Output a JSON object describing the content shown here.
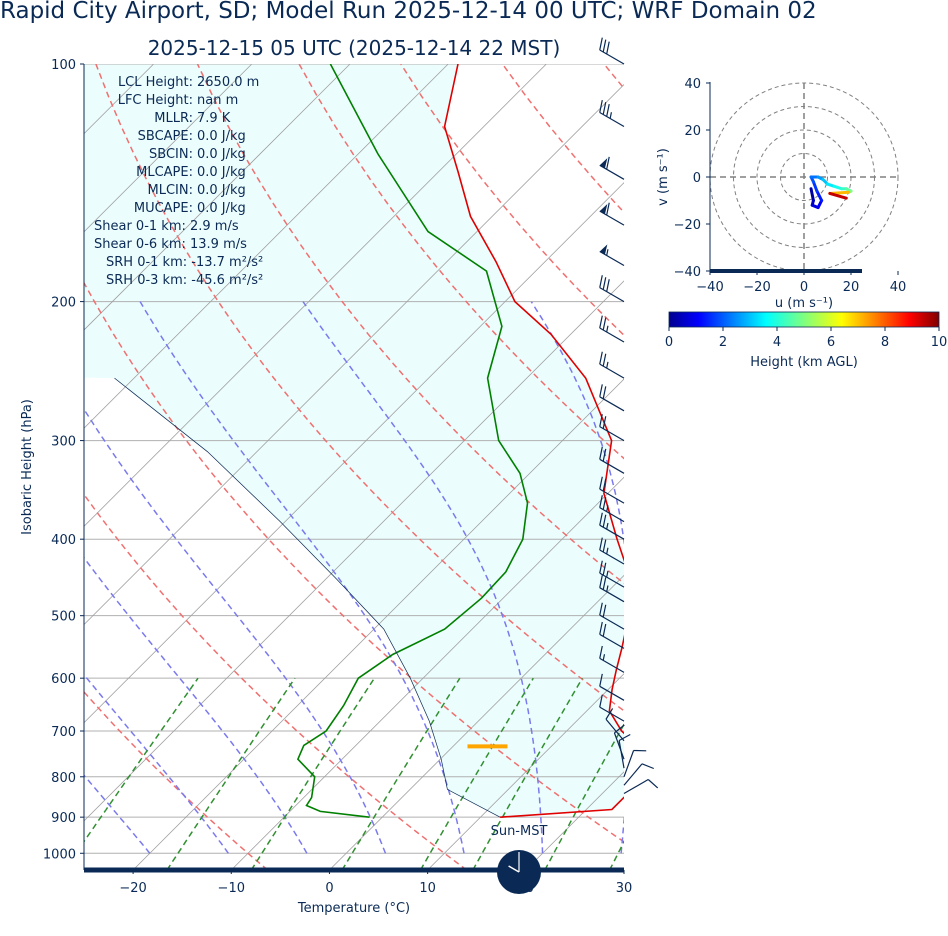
{
  "header": {
    "title": "Rapid City Airport, SD; Model Run 2025-12-14 00 UTC; WRF Domain 02",
    "subtitle": "2025-12-15 05 UTC  (2025-12-14 22 MST)"
  },
  "chart_data": [
    {
      "type": "skew-t",
      "xlabel": "Temperature (°C)",
      "ylabel": "Isobaric Height (hPa)",
      "xlim": [
        -25,
        30
      ],
      "ylim": [
        1050,
        100
      ],
      "x_ticks": [
        "−20",
        "−10",
        "0",
        "10",
        "20",
        "30"
      ],
      "y_ticks": [
        "100",
        "200",
        "300",
        "400",
        "500",
        "600",
        "700",
        "800",
        "900",
        "1000"
      ],
      "y_tick_values": [
        100,
        200,
        300,
        400,
        500,
        600,
        700,
        800,
        900,
        1000
      ],
      "series": [
        {
          "color": "#e00000",
          "kind": "temperature",
          "points": [
            [
              12.0,
              900
            ],
            [
              22.6,
              880
            ],
            [
              22.6,
              850
            ],
            [
              22.8,
              800
            ],
            [
              21.3,
              770
            ],
            [
              18.7,
              730
            ],
            [
              15.6,
              700
            ],
            [
              12.3,
              660
            ],
            [
              10.4,
              620
            ],
            [
              8.8,
              585
            ],
            [
              7.2,
              550
            ],
            [
              4.6,
              500
            ],
            [
              1.1,
              450
            ],
            [
              -4.4,
              400
            ],
            [
              -10.4,
              350
            ],
            [
              -15.0,
              300
            ],
            [
              -24.0,
              250
            ],
            [
              -32.0,
              220
            ],
            [
              -39.0,
              200
            ],
            [
              -45.0,
              178
            ],
            [
              -52.2,
              156
            ],
            [
              -58.0,
              137
            ],
            [
              -64.0,
              120
            ],
            [
              -69.0,
              100
            ]
          ]
        },
        {
          "color": "#008000",
          "kind": "dewpoint",
          "points": [
            [
              -1.3,
              900
            ],
            [
              -6.9,
              885
            ],
            [
              -8.9,
              870
            ],
            [
              -9.2,
              850
            ],
            [
              -11.0,
              800
            ],
            [
              -14.5,
              760
            ],
            [
              -15.3,
              730
            ],
            [
              -14.5,
              700
            ],
            [
              -15.3,
              650
            ],
            [
              -16.6,
              600
            ],
            [
              -15.5,
              560
            ],
            [
              -12.8,
              520
            ],
            [
              -12.2,
              475
            ],
            [
              -12.4,
              440
            ],
            [
              -14.0,
              400
            ],
            [
              -17.2,
              360
            ],
            [
              -21.0,
              330
            ],
            [
              -26.5,
              300
            ],
            [
              -34.0,
              250
            ],
            [
              -37.8,
              215
            ],
            [
              -45.0,
              183
            ],
            [
              -55.0,
              163
            ],
            [
              -68.0,
              130
            ],
            [
              -82.0,
              100
            ]
          ]
        },
        {
          "color": "#0a2a55",
          "kind": "parcel",
          "points": [
            [
              12.0,
              900
            ],
            [
              3.8,
              830
            ],
            [
              0.1,
              760
            ],
            [
              -5.0,
              680
            ],
            [
              -11.3,
              600
            ],
            [
              -19.0,
              520
            ],
            [
              -28.8,
              450
            ],
            [
              -40.5,
              380
            ],
            [
              -55.0,
              310
            ],
            [
              -72.0,
              250
            ]
          ]
        }
      ],
      "lcl_marker": {
        "color": "#ffa500",
        "pressure": 732,
        "temperature": 3.5
      },
      "indices": [
        "LCL Height: 2650.0 m",
        "LFC Height: nan m",
        "MLLR: 7.9 K",
        "SBCAPE: 0.0 J/kg",
        "SBCIN: 0.0 J/kg",
        "MLCAPE: 0.0 J/kg",
        "MLCIN: 0.0 J/kg",
        "MUCAPE: 0.0 J/kg",
        "Shear 0-1 km: 2.9 m/s",
        "Shear 0-6 km: 13.9 m/s",
        "SRH 0-1 km: -13.7 m²/s²",
        "SRH 0-3 km: -45.6 m²/s²"
      ],
      "clock_label": "Sun-MST",
      "clock_hour": 22,
      "wind_barbs": [
        {
          "p": 100,
          "dir": 300,
          "kt": 30
        },
        {
          "p": 120,
          "dir": 300,
          "kt": 35
        },
        {
          "p": 140,
          "dir": 300,
          "kt": 60
        },
        {
          "p": 160,
          "dir": 300,
          "kt": 60
        },
        {
          "p": 180,
          "dir": 300,
          "kt": 55
        },
        {
          "p": 200,
          "dir": 300,
          "kt": 30
        },
        {
          "p": 225,
          "dir": 300,
          "kt": 25
        },
        {
          "p": 250,
          "dir": 300,
          "kt": 25
        },
        {
          "p": 275,
          "dir": 300,
          "kt": 20
        },
        {
          "p": 300,
          "dir": 300,
          "kt": 20
        },
        {
          "p": 330,
          "dir": 300,
          "kt": 20
        },
        {
          "p": 360,
          "dir": 300,
          "kt": 20
        },
        {
          "p": 380,
          "dir": 300,
          "kt": 25
        },
        {
          "p": 400,
          "dir": 300,
          "kt": 25
        },
        {
          "p": 430,
          "dir": 300,
          "kt": 25
        },
        {
          "p": 460,
          "dir": 300,
          "kt": 25
        },
        {
          "p": 480,
          "dir": 300,
          "kt": 25
        },
        {
          "p": 520,
          "dir": 300,
          "kt": 20
        },
        {
          "p": 550,
          "dir": 300,
          "kt": 20
        },
        {
          "p": 590,
          "dir": 300,
          "kt": 15
        },
        {
          "p": 640,
          "dir": 300,
          "kt": 10
        },
        {
          "p": 680,
          "dir": 300,
          "kt": 10
        },
        {
          "p": 720,
          "dir": 320,
          "kt": 10
        },
        {
          "p": 760,
          "dir": 340,
          "kt": 10
        },
        {
          "p": 780,
          "dir": 350,
          "kt": 10
        },
        {
          "p": 800,
          "dir": 20,
          "kt": 10
        },
        {
          "p": 820,
          "dir": 40,
          "kt": 10
        },
        {
          "p": 840,
          "dir": 60,
          "kt": 10
        }
      ]
    },
    {
      "type": "hodograph",
      "xlabel": "u (m s⁻¹)",
      "ylabel": "v (m s⁻¹)",
      "xlim": [
        -40,
        40
      ],
      "ylim": [
        -40,
        40
      ],
      "x_ticks": [
        "−40",
        "−20",
        "0",
        "20",
        "40"
      ],
      "y_ticks": [
        "40",
        "20",
        "0",
        "−20",
        "−40"
      ],
      "ring_radii": [
        10,
        20,
        30,
        40
      ],
      "points": [
        [
          3.0,
          -5.0,
          0.0
        ],
        [
          4.0,
          -10.0,
          0.3
        ],
        [
          3.5,
          -12.0,
          0.6
        ],
        [
          6.0,
          -13.0,
          0.9
        ],
        [
          7.5,
          -10.0,
          1.2
        ],
        [
          5.5,
          -6.0,
          1.5
        ],
        [
          4.0,
          -2.0,
          1.8
        ],
        [
          3.0,
          0.0,
          2.0
        ],
        [
          6.0,
          0.0,
          2.4
        ],
        [
          8.0,
          -1.0,
          2.8
        ],
        [
          10.0,
          -3.0,
          3.2
        ],
        [
          13.0,
          -4.0,
          3.6
        ],
        [
          16.0,
          -5.0,
          4.0
        ],
        [
          18.0,
          -5.0,
          4.4
        ],
        [
          20.0,
          -6.0,
          4.8
        ],
        [
          19.0,
          -6.5,
          5.2
        ],
        [
          11.0,
          -7.0,
          9.0
        ],
        [
          18.0,
          -9.0,
          9.8
        ]
      ],
      "colorbar": {
        "label": "Height (km AGL)",
        "ticks": [
          "0",
          "2",
          "4",
          "6",
          "8",
          "10"
        ],
        "range": [
          0,
          10
        ]
      }
    }
  ]
}
